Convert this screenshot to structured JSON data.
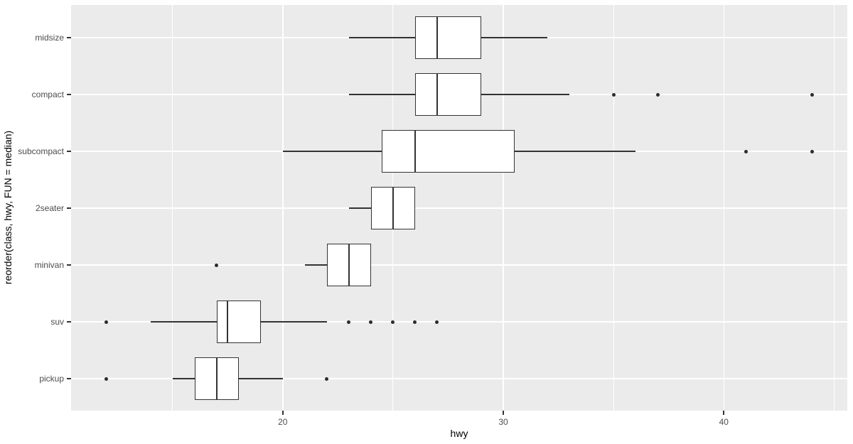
{
  "figure": {
    "x_axis_title": "hwy",
    "y_axis_title": "reorder(class, hwy, FUN = median)"
  },
  "chart_data": {
    "type": "boxplot",
    "orientation": "horizontal",
    "title": "",
    "xlabel": "hwy",
    "ylabel": "reorder(class, hwy, FUN = median)",
    "legend": "none",
    "grid": "white major gridlines on gray panel, minor vertical gridlines",
    "xlim": [
      10.4,
      45.6
    ],
    "x_ticks": [
      20,
      30,
      40
    ],
    "x_minor_ticks": [
      15,
      25,
      35,
      45
    ],
    "categories_top_to_bottom": [
      "midsize",
      "compact",
      "subcompact",
      "2seater",
      "minivan",
      "suv",
      "pickup"
    ],
    "boxes": [
      {
        "category": "midsize",
        "whisker_low": 23,
        "q1": 26,
        "median": 27,
        "q3": 29,
        "whisker_high": 32,
        "outliers": []
      },
      {
        "category": "compact",
        "whisker_low": 23,
        "q1": 26,
        "median": 27,
        "q3": 29,
        "whisker_high": 33,
        "outliers": [
          35,
          37,
          44
        ]
      },
      {
        "category": "subcompact",
        "whisker_low": 20,
        "q1": 24.5,
        "median": 26,
        "q3": 30.5,
        "whisker_high": 36,
        "outliers": [
          41,
          44
        ]
      },
      {
        "category": "2seater",
        "whisker_low": 23,
        "q1": 24,
        "median": 25,
        "q3": 26,
        "whisker_high": 26,
        "outliers": []
      },
      {
        "category": "minivan",
        "whisker_low": 21,
        "q1": 22,
        "median": 23,
        "q3": 24,
        "whisker_high": 24,
        "outliers": [
          17
        ]
      },
      {
        "category": "suv",
        "whisker_low": 14,
        "q1": 17,
        "median": 17.5,
        "q3": 19,
        "whisker_high": 22,
        "outliers": [
          12,
          23,
          24,
          25,
          26,
          27
        ]
      },
      {
        "category": "pickup",
        "whisker_low": 15,
        "q1": 16,
        "median": 17,
        "q3": 18,
        "whisker_high": 20,
        "outliers": [
          12,
          22
        ]
      }
    ],
    "style": {
      "panel_bg": "#EBEBEB",
      "grid_color": "#FFFFFF",
      "box_stroke": "#333333",
      "box_fill": "#FFFFFF",
      "outlier_color": "#2B2B2B",
      "tick_label_color": "#4D4D4D",
      "tick_mark_color": "#333333",
      "axis_title_color": "#000000"
    }
  }
}
